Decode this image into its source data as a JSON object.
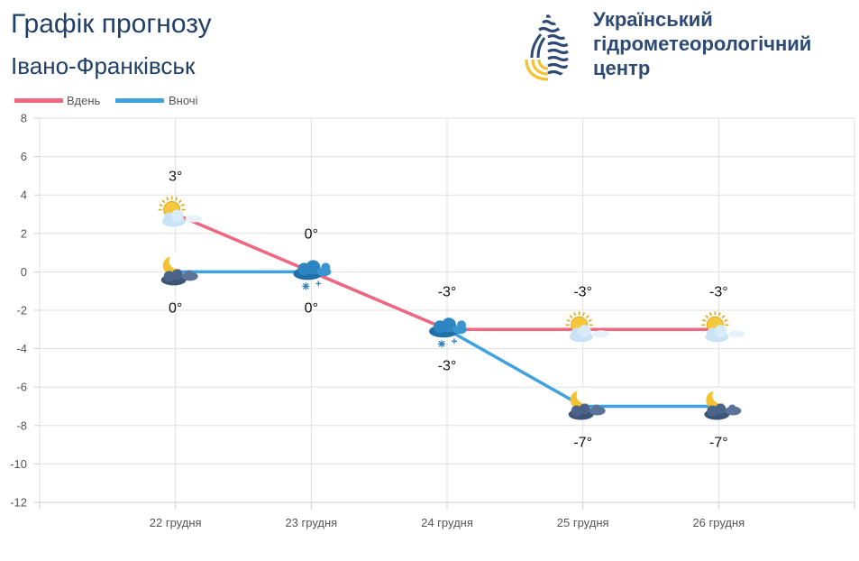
{
  "header": {
    "title": "Графік прогнозу",
    "city": "Івано-Франківськ",
    "org_line1": "Український",
    "org_line2": "гідрометеорологічний",
    "org_line3": "центр"
  },
  "colors": {
    "day": "#f0677f",
    "night": "#3fa2e0",
    "title": "#20406a",
    "grid": "#e0e0e0",
    "axis_text": "#555555"
  },
  "chart_data": {
    "type": "line",
    "title": "Графік прогнозу",
    "categories": [
      "22 грудня",
      "23 грудня",
      "24 грудня",
      "25 грудня",
      "26 грудня"
    ],
    "ylim": [
      -12,
      8
    ],
    "yticks": [
      8,
      6,
      4,
      2,
      0,
      -2,
      -4,
      -6,
      -8,
      -10,
      -12
    ],
    "grid": true,
    "legend_position": "top-left",
    "series": [
      {
        "name": "Вдень",
        "values": [
          3,
          0,
          -3,
          -3,
          -3
        ],
        "labels": [
          "3°",
          "0°",
          "-3°",
          "-3°",
          "-3°"
        ],
        "icons": [
          "sun-cloud-icon",
          "snow-cloud-icon",
          "snow-cloud-icon",
          "sun-cloud-icon",
          "sun-cloud-icon"
        ]
      },
      {
        "name": "Вночі",
        "values": [
          0,
          0,
          -3,
          -7,
          -7
        ],
        "labels": [
          "0°",
          "0°",
          "-3°",
          "-7°",
          "-7°"
        ],
        "icons": [
          "moon-cloud-icon",
          "snow-cloud-icon",
          "snow-cloud-icon",
          "moon-cloud-icon",
          "moon-cloud-icon"
        ]
      }
    ]
  }
}
